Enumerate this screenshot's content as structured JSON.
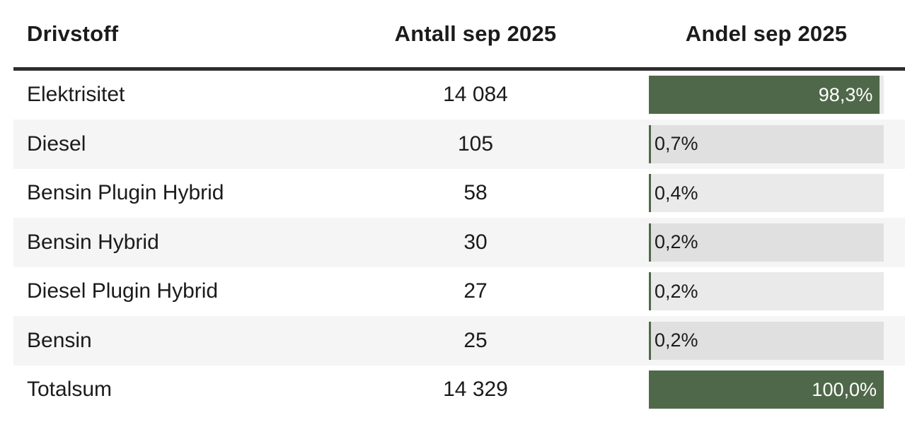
{
  "chart_data": {
    "type": "table",
    "columns": [
      "Drivstoff",
      "Antall sep 2025",
      "Andel sep 2025"
    ],
    "rows": [
      {
        "drivstoff": "Elektrisitet",
        "antall": 14084,
        "antall_display": "14 084",
        "andel_pct": 98.3,
        "andel_display": "98,3%"
      },
      {
        "drivstoff": "Diesel",
        "antall": 105,
        "antall_display": "105",
        "andel_pct": 0.7,
        "andel_display": "0,7%"
      },
      {
        "drivstoff": "Bensin Plugin Hybrid",
        "antall": 58,
        "antall_display": "58",
        "andel_pct": 0.4,
        "andel_display": "0,4%"
      },
      {
        "drivstoff": "Bensin Hybrid",
        "antall": 30,
        "antall_display": "30",
        "andel_pct": 0.2,
        "andel_display": "0,2%"
      },
      {
        "drivstoff": "Diesel Plugin Hybrid",
        "antall": 27,
        "antall_display": "27",
        "andel_pct": 0.2,
        "andel_display": "0,2%"
      },
      {
        "drivstoff": "Bensin",
        "antall": 25,
        "antall_display": "25",
        "andel_pct": 0.2,
        "andel_display": "0,2%"
      },
      {
        "drivstoff": "Totalsum",
        "antall": 14329,
        "antall_display": "14 329",
        "andel_pct": 100.0,
        "andel_display": "100,0%"
      }
    ],
    "layout": {
      "bar_column_is_data_bars": true,
      "stripe_odd_rows": true,
      "bar_label_inside_fill_when_pct_at_least": 50
    }
  },
  "header": {
    "col_drivstoff": "Drivstoff",
    "col_antall": "Antall sep 2025",
    "col_andel": "Andel sep 2025"
  },
  "colors": {
    "bar_fill": "#50684a",
    "row_stripe": "#f5f5f5",
    "header_rule": "#2d2d2d",
    "text": "#1b1b1b",
    "bar_label_light": "#ffffff"
  }
}
